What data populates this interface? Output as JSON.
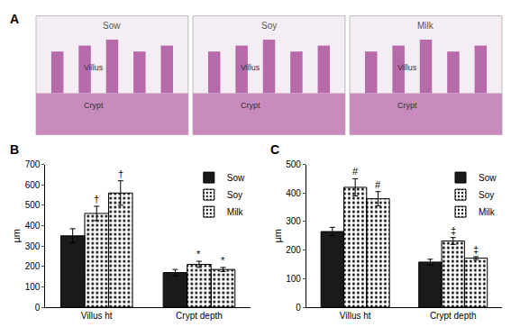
{
  "panel_a": {
    "label": "A",
    "images": [
      "Sow",
      "Soy",
      "Milk"
    ],
    "annotations": [
      "Villus",
      "Crypt"
    ]
  },
  "chart_data": [
    {
      "type": "bar",
      "title": "B",
      "categories": [
        "Villus ht",
        "Crypt depth"
      ],
      "y_label": "µm",
      "ylim": [
        0,
        700
      ],
      "yticks": [
        0,
        100,
        200,
        300,
        400,
        500,
        600,
        700
      ],
      "legend": "upper right",
      "series": [
        {
          "name": "Sow",
          "color": "#1a1a1a",
          "marker": "solid",
          "values": [
            350,
            170
          ],
          "errors": [
            35,
            15
          ],
          "significance": [
            null,
            null
          ]
        },
        {
          "name": "Soy",
          "color": "#8c8c8c",
          "marker": "dotted",
          "values": [
            460,
            210
          ],
          "errors": [
            35,
            15
          ],
          "significance": [
            "†",
            "*"
          ]
        },
        {
          "name": "Milk",
          "color": "#e6e6e6",
          "marker": "dotted",
          "values": [
            560,
            185
          ],
          "errors": [
            60,
            10
          ],
          "significance": [
            "†",
            "*"
          ]
        }
      ]
    },
    {
      "type": "bar",
      "title": "C",
      "categories": [
        "Villus ht",
        "Crypt depth"
      ],
      "y_label": "µm",
      "ylim": [
        0,
        500
      ],
      "yticks": [
        0,
        100,
        200,
        300,
        400,
        500
      ],
      "legend": "upper right",
      "series": [
        {
          "name": "Sow",
          "color": "#1a1a1a",
          "marker": "solid",
          "values": [
            265,
            158
          ],
          "errors": [
            15,
            10
          ],
          "significance": [
            null,
            null
          ]
        },
        {
          "name": "Soy",
          "color": "#8c8c8c",
          "marker": "dotted",
          "values": [
            420,
            232
          ],
          "errors": [
            30,
            12
          ],
          "significance": [
            "#",
            "‡"
          ]
        },
        {
          "name": "Milk",
          "color": "#e6e6e6",
          "marker": "dotted",
          "values": [
            380,
            172
          ],
          "errors": [
            25,
            5
          ],
          "significance": [
            "#",
            "‡"
          ]
        }
      ]
    }
  ]
}
